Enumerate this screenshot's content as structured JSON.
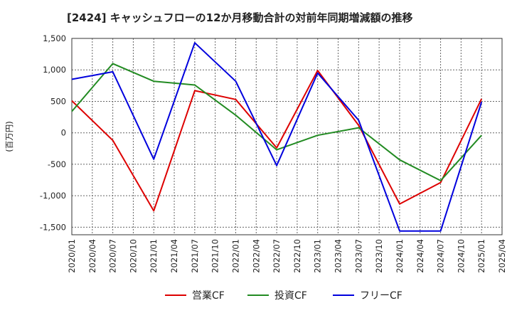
{
  "chart_data": {
    "type": "line",
    "title": "[2424]  キャッシュフローの12か月移動合計の対前年同期増減額の推移",
    "ylabel": "(百万円)",
    "xlabel": "",
    "x_ticks": [
      "2020/01",
      "2020/04",
      "2020/07",
      "2020/10",
      "2021/01",
      "2021/04",
      "2021/07",
      "2021/10",
      "2022/01",
      "2022/04",
      "2022/07",
      "2022/10",
      "2023/01",
      "2023/04",
      "2023/07",
      "2023/10",
      "2024/01",
      "2024/04",
      "2024/07",
      "2024/10",
      "2025/01",
      "2025/04"
    ],
    "y_ticks": [
      1500,
      1000,
      500,
      0,
      -500,
      -1000,
      -1500
    ],
    "y_tick_labels": [
      "1,500",
      "1,000",
      "500",
      "0",
      "-500",
      "-1,000",
      "-1,500"
    ],
    "ylim": [
      -1620,
      1500
    ],
    "grid": true,
    "legend_position": "bottom",
    "series": [
      {
        "name": "営業CF",
        "color": "#dd0000",
        "x": [
          "2020/01",
          "2020/07",
          "2021/01",
          "2021/07",
          "2022/01",
          "2022/07",
          "2023/01",
          "2023/07",
          "2024/01",
          "2024/07",
          "2025/01"
        ],
        "values": [
          510,
          -120,
          -1240,
          670,
          530,
          -240,
          990,
          120,
          -1130,
          -790,
          540
        ]
      },
      {
        "name": "投資CF",
        "color": "#228b22",
        "x": [
          "2020/01",
          "2020/07",
          "2021/01",
          "2021/07",
          "2022/01",
          "2022/07",
          "2023/01",
          "2023/07",
          "2024/01",
          "2024/07",
          "2025/01"
        ],
        "values": [
          340,
          1100,
          820,
          760,
          280,
          -270,
          -40,
          80,
          -430,
          -760,
          -40
        ]
      },
      {
        "name": "フリーCF",
        "color": "#0000dd",
        "x": [
          "2020/01",
          "2020/07",
          "2021/01",
          "2021/07",
          "2022/01",
          "2022/07",
          "2023/01",
          "2023/07",
          "2024/01",
          "2024/07",
          "2025/01"
        ],
        "values": [
          850,
          970,
          -420,
          1430,
          820,
          -520,
          950,
          200,
          -1560,
          -1560,
          490
        ]
      }
    ]
  }
}
